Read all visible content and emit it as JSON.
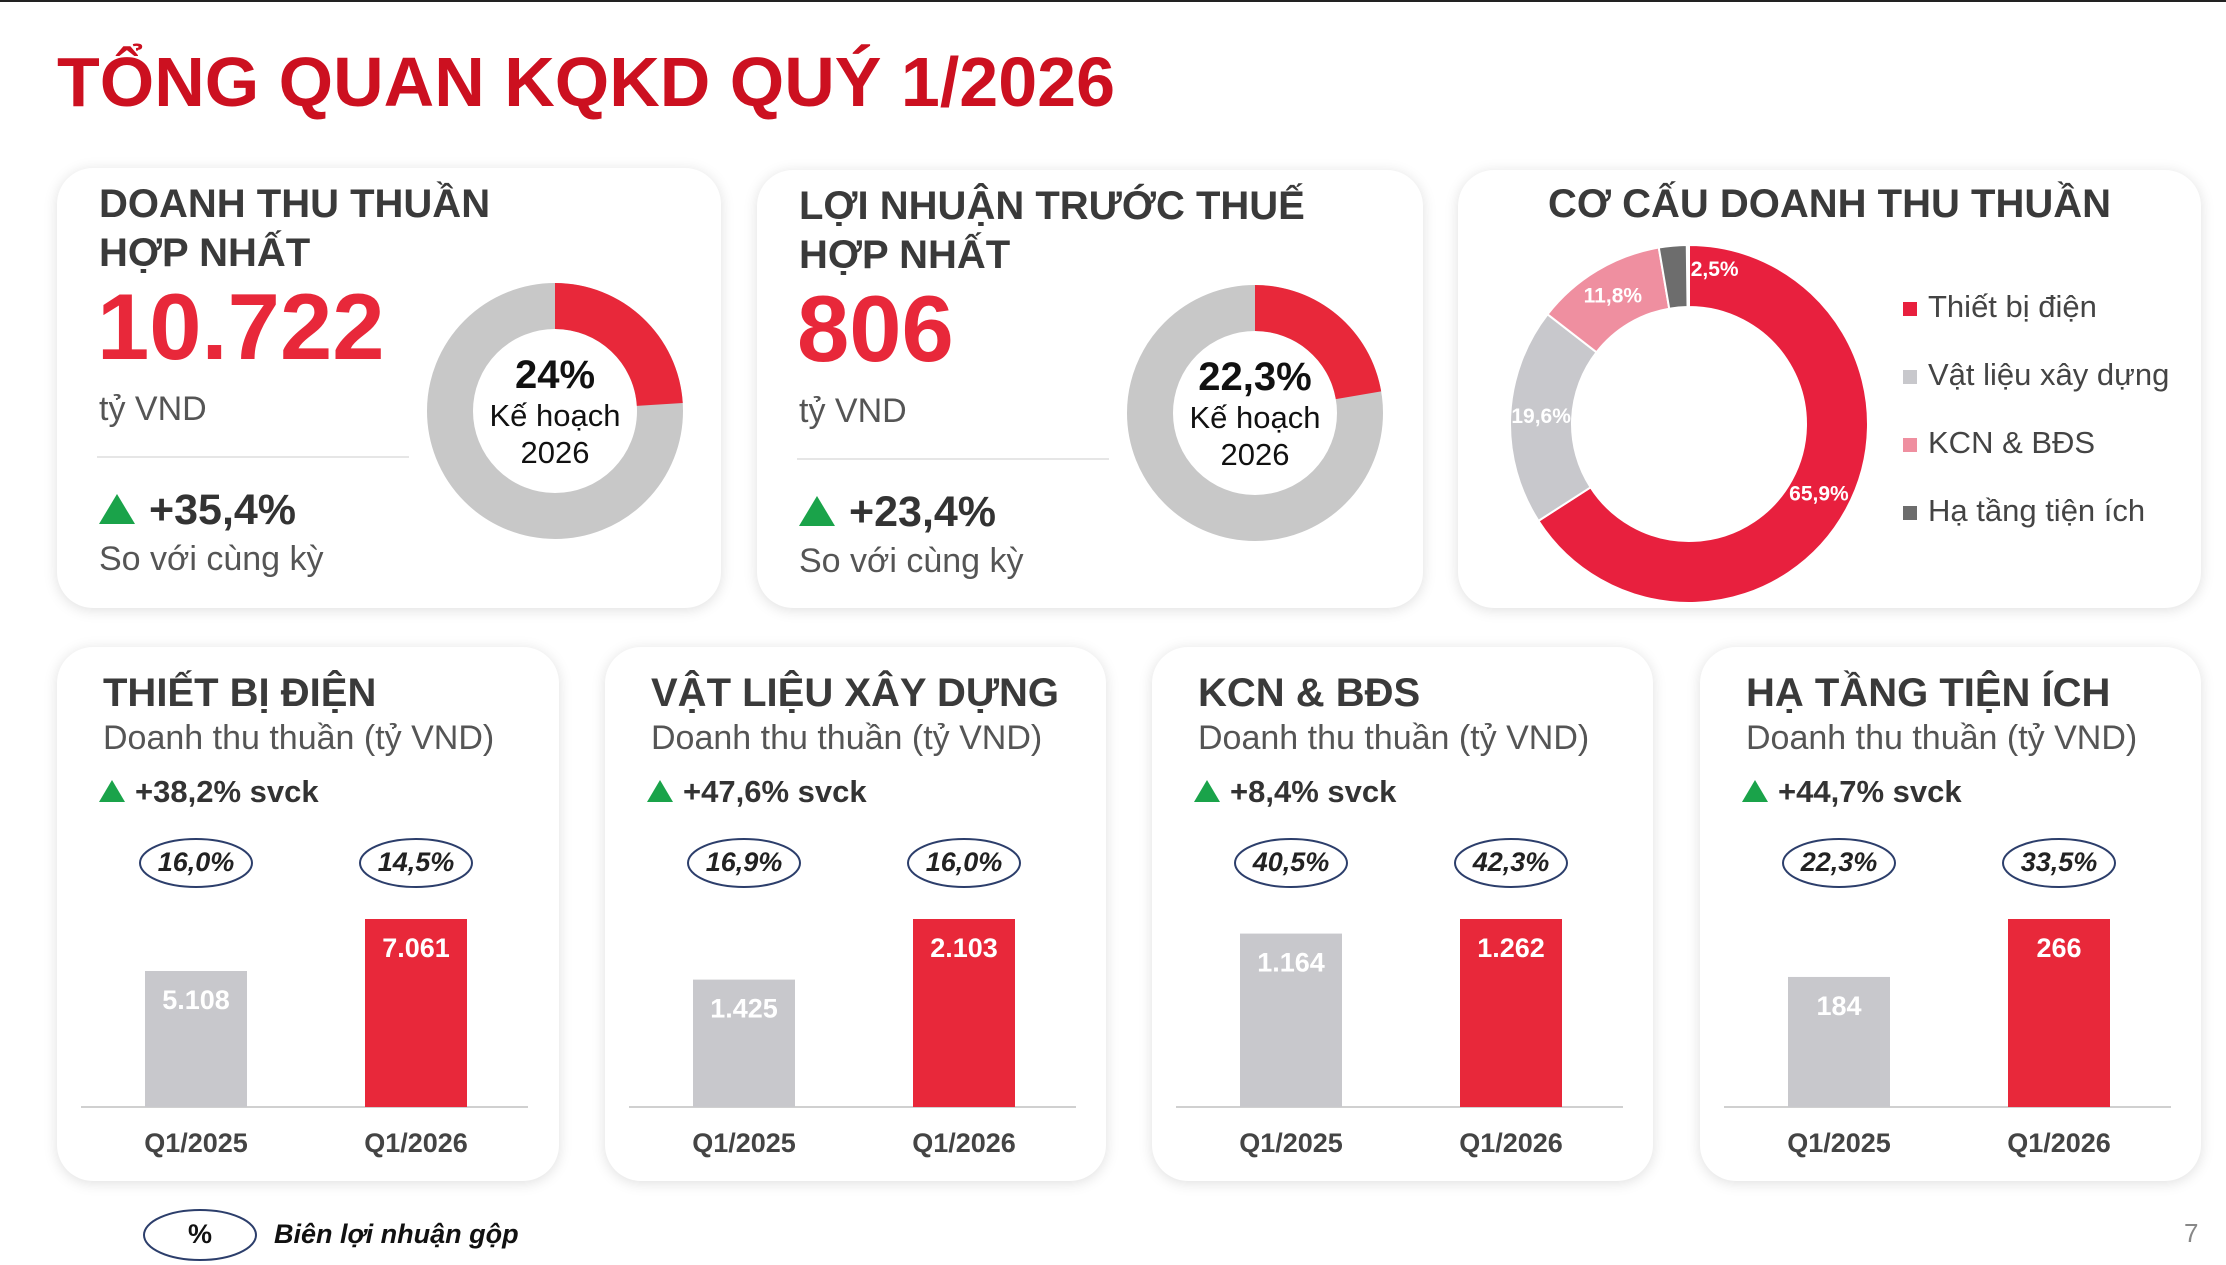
{
  "title": "TỔNG QUAN KQKD QUÝ 1/2026",
  "chart_data": [
    {
      "type": "gauge",
      "title": "DOANH THU THUẦN HỢP NHẤT",
      "headline": "10.722",
      "unit": "tỷ VND",
      "change": "+35,4%",
      "change_note": "So với cùng kỳ",
      "values": [
        24
      ],
      "value_labels": [
        "24%"
      ],
      "caption": "Kế hoạch 2026",
      "color": "#e8283a",
      "track_color": "#c8c8c8"
    },
    {
      "type": "gauge",
      "title": "LỢI NHUẬN TRƯỚC THUẾ HỢP NHẤT",
      "headline": "806",
      "unit": "tỷ VND",
      "change": "+23,4%",
      "change_note": "So với cùng kỳ",
      "values": [
        22.3
      ],
      "value_labels": [
        "22,3%"
      ],
      "caption": "Kế hoạch 2026",
      "color": "#e8283a",
      "track_color": "#c8c8c8"
    },
    {
      "type": "donut",
      "title": "CƠ CẤU DOANH THU THUẦN",
      "categories": [
        "Thiết bị điện",
        "Vật liệu xây dựng",
        "KCN & BĐS",
        "Hạ tầng tiện ích"
      ],
      "values": [
        65.9,
        19.6,
        11.8,
        2.5
      ],
      "value_labels": [
        "65,9%",
        "19,6%",
        "11,8%",
        "2,5%"
      ],
      "colors": [
        "#e8203e",
        "#c8c8cc",
        "#ef8fa0",
        "#6d6d6d"
      ]
    },
    {
      "type": "bar",
      "title": "THIẾT BỊ ĐIỆN",
      "subtitle": "Doanh thu thuần (tỷ VND)",
      "change": "+38,2% svck",
      "categories": [
        "Q1/2025",
        "Q1/2026"
      ],
      "values": [
        5108,
        7061
      ],
      "value_labels": [
        "5.108",
        "7.061"
      ],
      "colors": [
        "#c8c8cc",
        "#e8283a"
      ],
      "gross_margin": {
        "values": [
          16.0,
          14.5
        ],
        "value_labels": [
          "16,0%",
          "14,5%"
        ]
      }
    },
    {
      "type": "bar",
      "title": "VẬT LIỆU XÂY DỰNG",
      "subtitle": "Doanh thu thuần (tỷ VND)",
      "change": "+47,6% svck",
      "categories": [
        "Q1/2025",
        "Q1/2026"
      ],
      "values": [
        1425,
        2103
      ],
      "value_labels": [
        "1.425",
        "2.103"
      ],
      "colors": [
        "#c8c8cc",
        "#e8283a"
      ],
      "gross_margin": {
        "values": [
          16.9,
          16.0
        ],
        "value_labels": [
          "16,9%",
          "16,0%"
        ]
      }
    },
    {
      "type": "bar",
      "title": "KCN & BĐS",
      "subtitle": "Doanh thu thuần (tỷ VND)",
      "change": "+8,4% svck",
      "categories": [
        "Q1/2025",
        "Q1/2026"
      ],
      "values": [
        1164,
        1262
      ],
      "value_labels": [
        "1.164",
        "1.262"
      ],
      "colors": [
        "#c8c8cc",
        "#e8283a"
      ],
      "gross_margin": {
        "values": [
          40.5,
          42.3
        ],
        "value_labels": [
          "40,5%",
          "42,3%"
        ]
      }
    },
    {
      "type": "bar",
      "title": "HẠ TẦNG TIỆN ÍCH",
      "subtitle": "Doanh thu thuần (tỷ VND)",
      "change": "+44,7% svck",
      "categories": [
        "Q1/2025",
        "Q1/2026"
      ],
      "values": [
        184,
        266
      ],
      "value_labels": [
        "184",
        "266"
      ],
      "colors": [
        "#c8c8cc",
        "#e8283a"
      ],
      "gross_margin": {
        "values": [
          22.3,
          33.5
        ],
        "value_labels": [
          "22,3%",
          "33,5%"
        ]
      }
    }
  ],
  "legend_note": {
    "symbol": "%",
    "label": "Biên lợi nhuận gộp"
  },
  "page_number": "7"
}
